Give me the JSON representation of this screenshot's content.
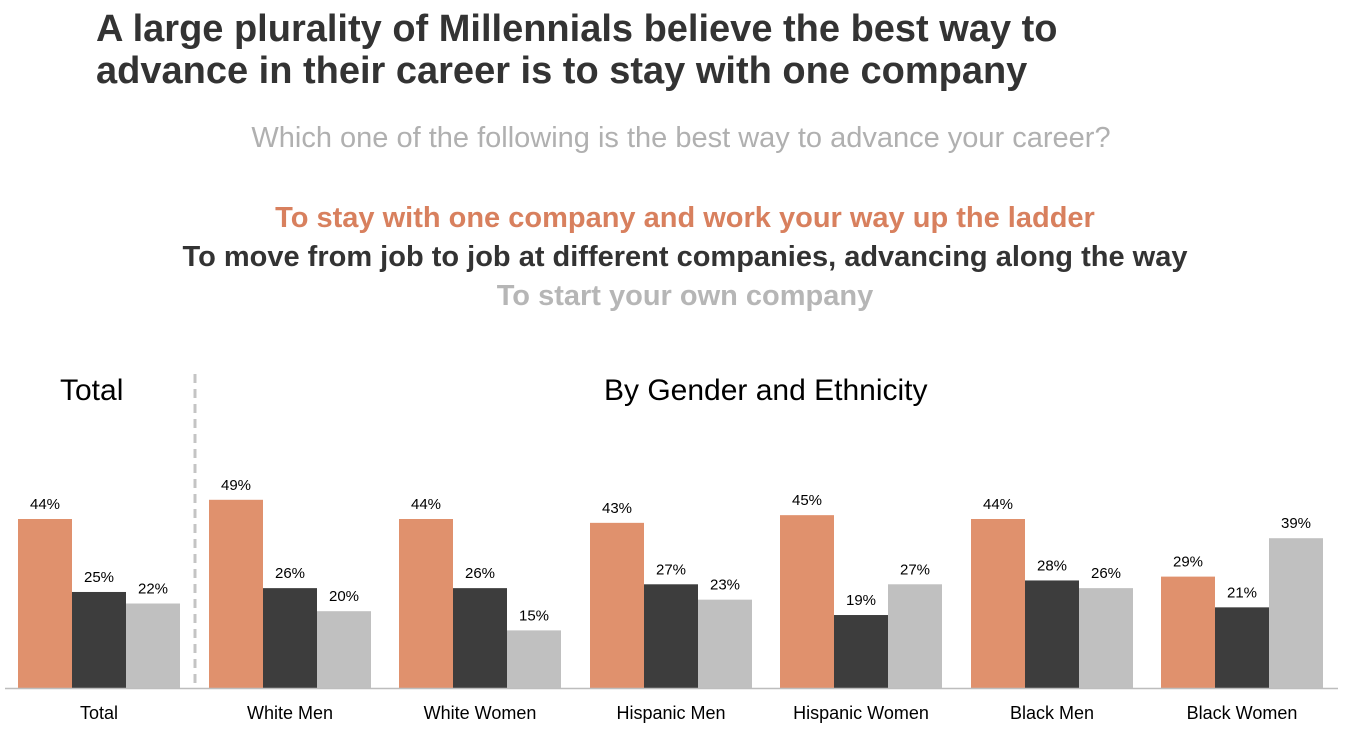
{
  "title": {
    "line1": "A large plurality of Millennials believe the best way to",
    "line2": "advance in their career is to stay with one company"
  },
  "question": "Which one of the following is the best way to advance your career?",
  "panels": {
    "left": "Total",
    "right": "By Gender and Ethnicity"
  },
  "colors": {
    "series": [
      "#e0916d",
      "#3d3d3d",
      "#c0c0c0"
    ],
    "legend": [
      "#d8805e",
      "#333333",
      "#b6b6b6"
    ]
  },
  "chart_data": {
    "type": "bar",
    "categories": [
      "Total",
      "White Men",
      "White Women",
      "Hispanic Men",
      "Hispanic Women",
      "Black Men",
      "Black Women"
    ],
    "series": [
      {
        "name": "To stay with one company and work your way up the ladder",
        "values": [
          44,
          49,
          44,
          43,
          45,
          44,
          29
        ]
      },
      {
        "name": "To move from job to job at different companies, advancing along the way",
        "values": [
          25,
          26,
          26,
          27,
          19,
          28,
          21
        ]
      },
      {
        "name": "To start your own company",
        "values": [
          22,
          20,
          15,
          23,
          27,
          26,
          39
        ]
      }
    ],
    "value_suffix": "%",
    "ylim": [
      0,
      60
    ],
    "grid": false,
    "legend_position": "top"
  }
}
